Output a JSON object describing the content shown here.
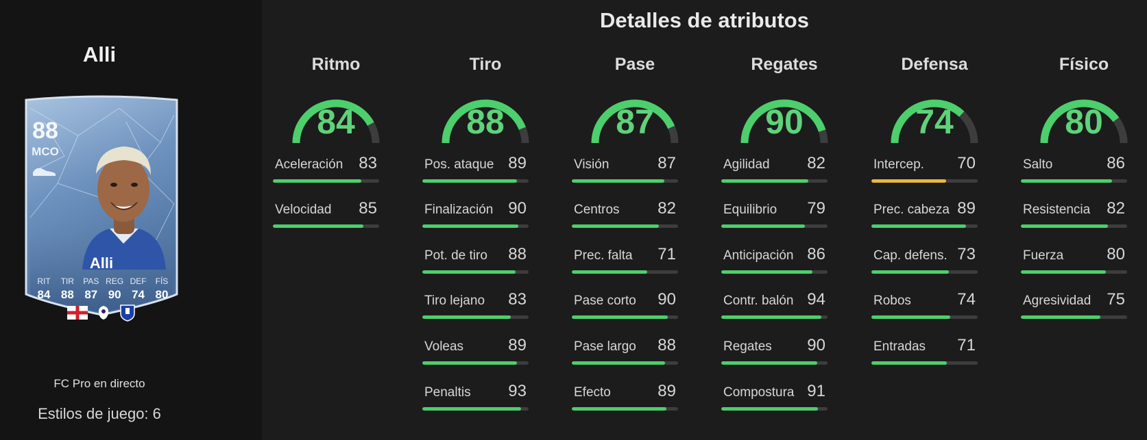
{
  "player": {
    "name": "Alli",
    "overall": "88",
    "position": "MCO",
    "card_name": "Alli",
    "card_stats": [
      {
        "label": "RIT",
        "value": "84"
      },
      {
        "label": "TIR",
        "value": "88"
      },
      {
        "label": "PAS",
        "value": "87"
      },
      {
        "label": "REG",
        "value": "90"
      },
      {
        "label": "DEF",
        "value": "74"
      },
      {
        "label": "FÍS",
        "value": "80"
      }
    ],
    "version": "FC Pro en directo",
    "playstyles": "Estilos de juego: 6"
  },
  "title": "Detalles de atributos",
  "colors": {
    "good": "#4ccf6c",
    "mid": "#e8b83e",
    "track": "#3d3d3d"
  },
  "categories": [
    {
      "name": "Ritmo",
      "value": "84",
      "subs": [
        {
          "label": "Aceleración",
          "value": "83"
        },
        {
          "label": "Velocidad",
          "value": "85"
        }
      ]
    },
    {
      "name": "Tiro",
      "value": "88",
      "subs": [
        {
          "label": "Pos. ataque",
          "value": "89"
        },
        {
          "label": "Finalización",
          "value": "90"
        },
        {
          "label": "Pot. de tiro",
          "value": "88"
        },
        {
          "label": "Tiro lejano",
          "value": "83"
        },
        {
          "label": "Voleas",
          "value": "89"
        },
        {
          "label": "Penaltis",
          "value": "93"
        }
      ]
    },
    {
      "name": "Pase",
      "value": "87",
      "subs": [
        {
          "label": "Visión",
          "value": "87"
        },
        {
          "label": "Centros",
          "value": "82"
        },
        {
          "label": "Prec. falta",
          "value": "71"
        },
        {
          "label": "Pase corto",
          "value": "90"
        },
        {
          "label": "Pase largo",
          "value": "88"
        },
        {
          "label": "Efecto",
          "value": "89"
        }
      ]
    },
    {
      "name": "Regates",
      "value": "90",
      "subs": [
        {
          "label": "Agilidad",
          "value": "82"
        },
        {
          "label": "Equilibrio",
          "value": "79"
        },
        {
          "label": "Anticipación",
          "value": "86"
        },
        {
          "label": "Contr. balón",
          "value": "94"
        },
        {
          "label": "Regates",
          "value": "90"
        },
        {
          "label": "Compostura",
          "value": "91"
        }
      ]
    },
    {
      "name": "Defensa",
      "value": "74",
      "subs": [
        {
          "label": "Intercep.",
          "value": "70"
        },
        {
          "label": "Prec. cabeza",
          "value": "89"
        },
        {
          "label": "Cap. defens.",
          "value": "73"
        },
        {
          "label": "Robos",
          "value": "74"
        },
        {
          "label": "Entradas",
          "value": "71"
        }
      ]
    },
    {
      "name": "Físico",
      "value": "80",
      "subs": [
        {
          "label": "Salto",
          "value": "86"
        },
        {
          "label": "Resistencia",
          "value": "82"
        },
        {
          "label": "Fuerza",
          "value": "80"
        },
        {
          "label": "Agresividad",
          "value": "75"
        }
      ]
    }
  ]
}
